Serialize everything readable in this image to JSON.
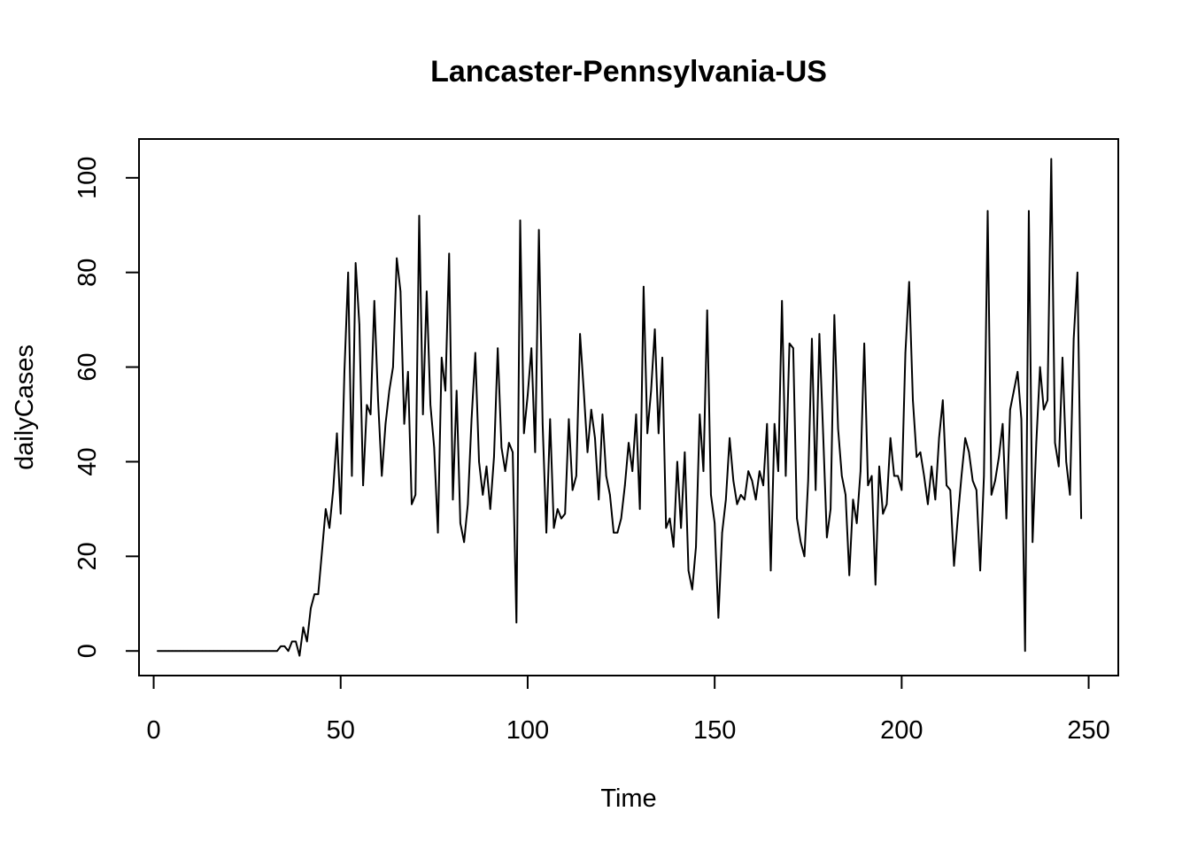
{
  "chart_data": {
    "type": "line",
    "title": "Lancaster-Pennsylvania-US",
    "xlabel": "Time",
    "ylabel": "dailyCases",
    "xlim": [
      -3.92,
      257.92
    ],
    "ylim": [
      -5.2,
      108.2
    ],
    "x_ticks": [
      "0",
      "50",
      "100",
      "150",
      "200",
      "250"
    ],
    "y_ticks": [
      "0",
      "20",
      "40",
      "60",
      "80",
      "100"
    ],
    "grid": false,
    "legend": "none",
    "line_color": "#000000",
    "series": [
      {
        "x_start": 1,
        "values": [
          0,
          0,
          0,
          0,
          0,
          0,
          0,
          0,
          0,
          0,
          0,
          0,
          0,
          0,
          0,
          0,
          0,
          0,
          0,
          0,
          0,
          0,
          0,
          0,
          0,
          0,
          0,
          0,
          0,
          0,
          0,
          0,
          0,
          1,
          1,
          0,
          2,
          2,
          -1,
          5,
          2,
          9,
          12,
          12,
          21,
          30,
          26,
          34,
          46,
          29,
          59,
          80,
          37,
          82,
          69,
          35,
          52,
          50,
          74,
          53,
          37,
          48,
          55,
          60,
          83,
          76,
          48,
          59,
          31,
          33,
          92,
          50,
          76,
          52,
          43,
          25,
          62,
          55,
          84,
          32,
          55,
          27,
          23,
          31,
          49,
          63,
          40,
          33,
          39,
          30,
          41,
          64,
          43,
          38,
          44,
          42,
          6,
          91,
          46,
          54,
          64,
          42,
          89,
          48,
          25,
          49,
          26,
          30,
          28,
          29,
          49,
          34,
          37,
          67,
          55,
          42,
          51,
          45,
          32,
          50,
          37,
          33,
          25,
          25,
          28,
          35,
          44,
          38,
          50,
          30,
          77,
          46,
          55,
          68,
          46,
          62,
          26,
          28,
          22,
          40,
          26,
          42,
          17,
          13,
          22,
          50,
          38,
          72,
          33,
          27,
          7,
          25,
          32,
          45,
          36,
          31,
          33,
          32,
          38,
          36,
          32,
          38,
          35,
          48,
          17,
          48,
          38,
          74,
          37,
          65,
          64,
          28,
          23,
          20,
          36,
          66,
          34,
          67,
          46,
          24,
          30,
          71,
          47,
          37,
          33,
          16,
          32,
          27,
          38,
          65,
          35,
          37,
          14,
          39,
          29,
          31,
          45,
          37,
          37,
          34,
          63,
          78,
          53,
          41,
          42,
          37,
          31,
          39,
          32,
          45,
          53,
          35,
          34,
          18,
          28,
          37,
          45,
          42,
          36,
          34,
          17,
          37,
          93,
          33,
          36,
          41,
          48,
          28,
          51,
          55,
          59,
          49,
          0,
          93,
          23,
          44,
          60,
          51,
          53,
          104,
          44,
          39,
          62,
          40,
          33,
          66,
          80,
          28
        ]
      }
    ]
  }
}
